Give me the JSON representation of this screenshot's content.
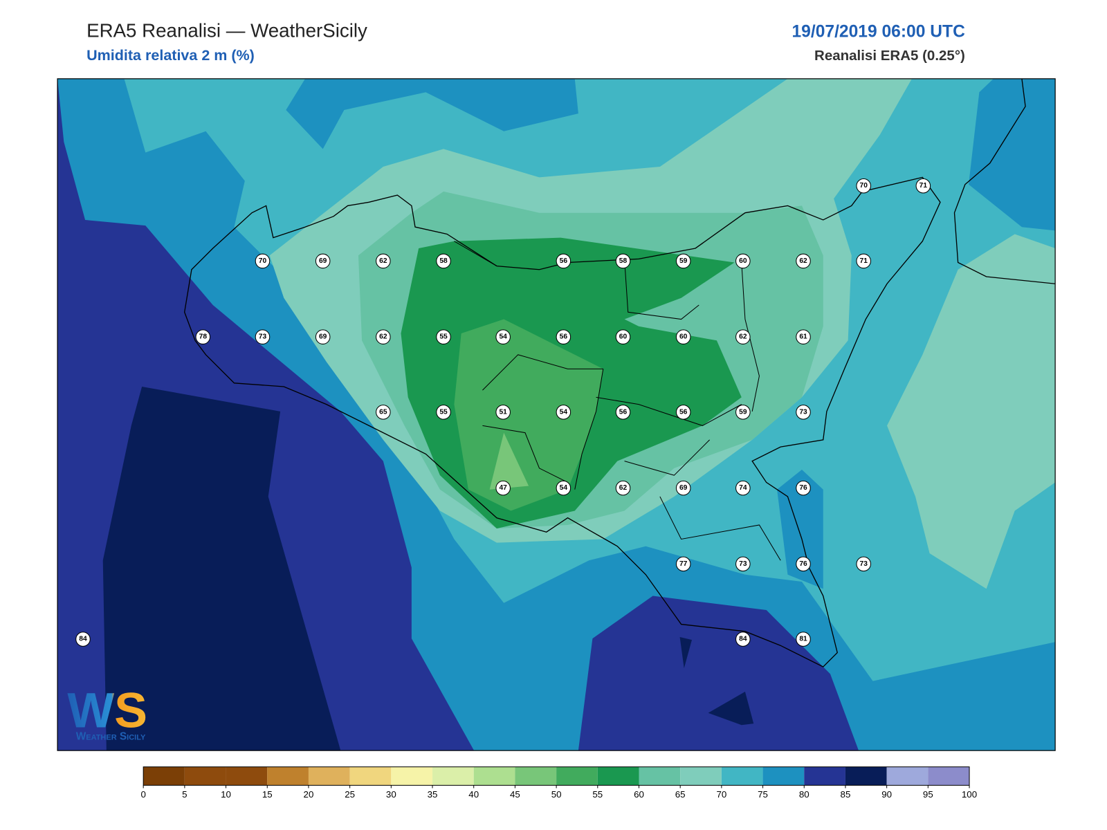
{
  "header": {
    "title": "ERA5 Reanalisi — WeatherSicily",
    "subtitle": "Umidita relativa 2 m (%)",
    "datetime": "19/07/2019 06:00 UTC",
    "source": "Reanalisi ERA5 (0.25°)"
  },
  "stations": [
    70,
    71,
    70,
    69,
    62,
    58,
    56,
    58,
    59,
    60,
    62,
    71,
    78,
    73,
    69,
    62,
    55,
    54,
    56,
    60,
    60,
    62,
    61,
    65,
    55,
    51,
    54,
    56,
    56,
    59,
    73,
    47,
    54,
    62,
    69,
    74,
    76,
    77,
    73,
    76,
    73,
    84,
    84,
    81
  ],
  "colorbar": {
    "ticks": [
      0,
      5,
      10,
      15,
      20,
      25,
      30,
      35,
      40,
      45,
      50,
      55,
      60,
      65,
      70,
      75,
      80,
      85,
      90,
      95,
      100
    ],
    "colors": [
      "#7b3f06",
      "#8e4b0d",
      "#8e4b0d",
      "#bf812d",
      "#dfb15c",
      "#f0d67e",
      "#f6f3a8",
      "#dbefa9",
      "#addf90",
      "#78c679",
      "#41ab5d",
      "#1a9850",
      "#66c2a4",
      "#7fcdbb",
      "#41b6c4",
      "#1d91c0",
      "#253494",
      "#081d58",
      "#9ea9dc",
      "#8c8ccb"
    ]
  },
  "logo": {
    "initials": "WS",
    "name": "Weather Sicily"
  }
}
